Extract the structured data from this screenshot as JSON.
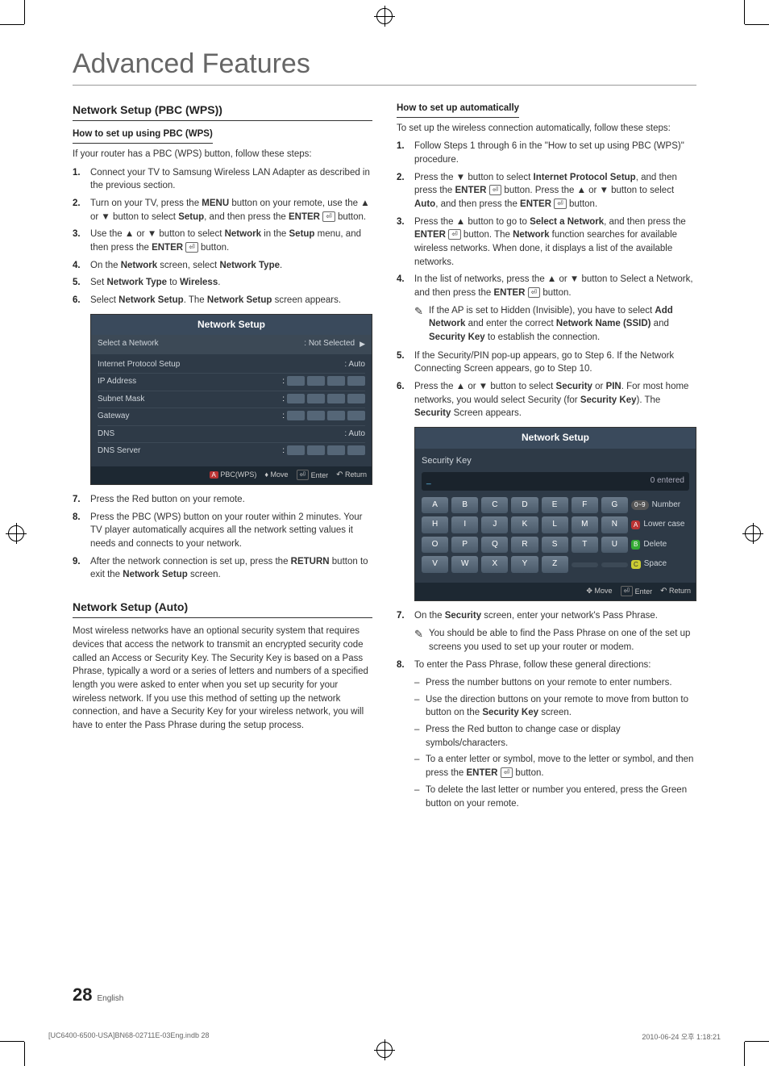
{
  "page": {
    "title": "Advanced Features",
    "number": "28",
    "language": "English"
  },
  "print": {
    "file": "[UC6400-6500-USA]BN68-02711E-03Eng.indb   28",
    "timestamp": "2010-06-24   오후 1:18:21"
  },
  "left": {
    "h1": "Network Setup (PBC (WPS))",
    "sub1": "How to set up using PBC (WPS)",
    "intro": "If your router has a PBC (WPS) button, follow these steps:",
    "steps1": [
      "Connect your TV to Samsung Wireless LAN Adapter as described in the previous section.",
      "Turn on your TV, press the MENU button on your remote, use the ▲ or ▼ button to select Setup, and then press the ENTER button.",
      "Use the ▲ or ▼ button to select Network in the Setup menu, and then press the ENTER button.",
      "On the Network screen, select Network Type.",
      "Set Network Type to Wireless.",
      "Select Network Setup. The Network Setup screen appears."
    ],
    "nsbox": {
      "title": "Network Setup",
      "rows": [
        {
          "label": "Select a Network",
          "val": ": Not Selected",
          "arrow": true
        },
        {
          "label": "Internet Protocol Setup",
          "val": ": Auto"
        },
        {
          "label": "IP Address",
          "chips": 4
        },
        {
          "label": "Subnet Mask",
          "chips": 4
        },
        {
          "label": "Gateway",
          "chips": 4
        },
        {
          "label": "DNS",
          "val": ": Auto"
        },
        {
          "label": "DNS Server",
          "chips": 4
        }
      ],
      "foot": {
        "a": "PBC(WPS)",
        "move": "Move",
        "enter": "Enter",
        "return": "Return"
      }
    },
    "steps2": [
      {
        "n": "7.",
        "t": "Press the Red button on your remote."
      },
      {
        "n": "8.",
        "t": "Press the PBC (WPS) button on your router within 2 minutes. Your TV player automatically acquires all the network setting values it needs and connects to your network."
      },
      {
        "n": "9.",
        "t": "After the network connection is set up, press the RETURN button to exit the Network Setup screen."
      }
    ],
    "h2": "Network Setup (Auto)",
    "autoText": "Most wireless networks have an optional security system that requires devices that access the network to transmit an encrypted security code called an Access or Security Key. The Security Key is based on a Pass Phrase, typically a word or a series of letters and numbers of a specified length you were asked to enter when you set up security for your wireless network.  If you use this method of setting up the network connection, and have a Security Key for your wireless network, you will have to enter the Pass Phrase during the setup process."
  },
  "right": {
    "sub1": "How to set up automatically",
    "intro": "To set up the wireless connection automatically, follow these steps:",
    "steps": [
      {
        "n": "1.",
        "t": "Follow Steps 1 through 6 in the \"How to set up using PBC (WPS)\" procedure."
      },
      {
        "n": "2.",
        "t": "Press the ▼ button to select Internet Protocol Setup, and then press the ENTER button. Press the ▲ or ▼ button to select Auto, and then press the ENTER button."
      },
      {
        "n": "3.",
        "t": "Press the ▲ button to go to Select a Network, and then press the ENTER button. The Network function searches for available wireless networks. When done, it displays a list of the available networks."
      },
      {
        "n": "4.",
        "t": "In the list of networks, press the ▲ or ▼ button to Select a Network, and then press the ENTER button."
      }
    ],
    "note4": "If the AP is set to Hidden (Invisible), you have to select Add Network and enter the correct Network Name (SSID) and Security Key to establish the connection.",
    "steps2": [
      {
        "n": "5.",
        "t": "If the Security/PIN pop-up appears, go to Step 6. If the Network Connecting Screen appears, go to Step 10."
      },
      {
        "n": "6.",
        "t": "Press the ▲ or ▼ button to select Security or PIN. For most home networks, you would select Security (for Security Key). The Security Screen appears."
      }
    ],
    "kbox": {
      "title": "Network Setup",
      "secLabel": "Security Key",
      "entered": "0 entered",
      "rows": [
        [
          "A",
          "B",
          "C",
          "D",
          "E",
          "F",
          "G"
        ],
        [
          "H",
          "I",
          "J",
          "K",
          "L",
          "M",
          "N"
        ],
        [
          "O",
          "P",
          "Q",
          "R",
          "S",
          "T",
          "U"
        ],
        [
          "V",
          "W",
          "X",
          "Y",
          "Z",
          "",
          ""
        ]
      ],
      "side": [
        {
          "pill": "0~9",
          "label": "Number"
        },
        {
          "pill": "A",
          "cls": "r",
          "label": "Lower case"
        },
        {
          "pill": "B",
          "cls": "g",
          "label": "Delete"
        },
        {
          "pill": "C",
          "cls": "y",
          "label": "Space"
        }
      ],
      "foot": {
        "move": "Move",
        "enter": "Enter",
        "return": "Return"
      }
    },
    "steps3": [
      {
        "n": "7.",
        "t": "On the Security screen, enter your network's Pass Phrase."
      }
    ],
    "note7": "You should be able to find the Pass Phrase on one of the set up screens you used to set up your router or modem.",
    "steps4": [
      {
        "n": "8.",
        "t": "To enter the Pass Phrase, follow these general directions:"
      }
    ],
    "dashes": [
      "Press the number buttons on your remote to enter numbers.",
      "Use the direction buttons on your remote to move from button to button on the Security Key screen.",
      "Press the Red button to change case or display symbols/characters.",
      "To a enter letter or symbol, move to the letter or symbol, and then press the ENTER button.",
      "To delete the last letter or number you entered, press the Green button on your remote."
    ]
  }
}
